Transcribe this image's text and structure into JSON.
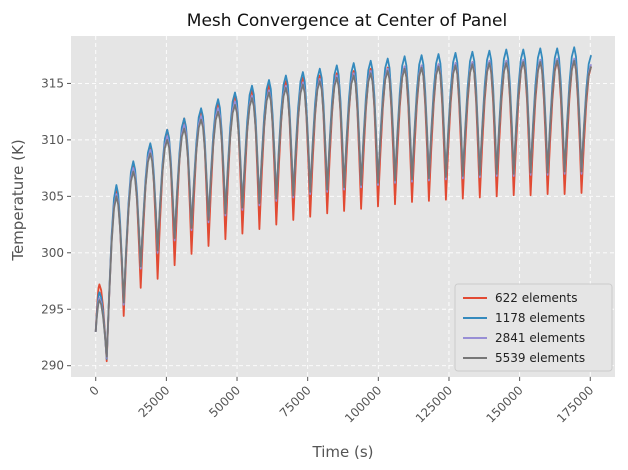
{
  "chart_data": {
    "type": "line",
    "title": "Mesh Convergence at Center of Panel",
    "xlabel": "Time (s)",
    "ylabel": "Temperature (K)",
    "xlim": [
      -8750,
      183750
    ],
    "ylim": [
      289,
      319.2
    ],
    "xticks": [
      0,
      25000,
      50000,
      75000,
      100000,
      125000,
      150000,
      175000
    ],
    "yticks": [
      290,
      295,
      300,
      305,
      310,
      315
    ],
    "grid": true,
    "legend_position": "lower-right",
    "period_s": 6000,
    "rise_s": 3400,
    "start": {
      "x": 0,
      "y": 293
    },
    "end_x": 175500,
    "series": [
      {
        "name": "622 elements",
        "color": "#e24a33",
        "peaks": [
          297.2,
          305.6,
          307.8,
          309.6,
          310.9,
          311.9,
          312.7,
          313.4,
          314.0,
          314.5,
          314.9,
          315.2,
          315.5,
          315.7,
          315.9,
          316.1,
          316.3,
          316.4,
          316.5,
          316.6,
          316.7,
          316.8,
          316.9,
          316.9,
          317.0,
          317.0,
          317.0,
          317.0,
          317.1,
          316.5
        ],
        "mins": [
          290.4,
          294.4,
          296.9,
          297.7,
          298.9,
          299.9,
          300.6,
          301.2,
          301.7,
          302.1,
          302.5,
          302.9,
          303.2,
          303.5,
          303.7,
          303.9,
          304.1,
          304.3,
          304.5,
          304.6,
          304.7,
          304.8,
          304.9,
          305.0,
          305.1,
          305.1,
          305.2,
          305.2,
          305.3
        ]
      },
      {
        "name": "1178 elements",
        "color": "#348abd",
        "peaks": [
          296.5,
          306.0,
          308.1,
          309.7,
          310.9,
          311.9,
          312.8,
          313.6,
          314.2,
          314.8,
          315.3,
          315.7,
          316.0,
          316.3,
          316.6,
          316.8,
          317.0,
          317.2,
          317.4,
          317.5,
          317.6,
          317.7,
          317.8,
          317.9,
          318.0,
          318.0,
          318.1,
          318.1,
          318.2,
          317.5
        ],
        "mins": [
          290.6,
          295.4,
          298.7,
          300.2,
          301.3,
          302.2,
          302.9,
          303.5,
          304.0,
          304.4,
          304.8,
          305.1,
          305.4,
          305.6,
          305.8,
          306.0,
          306.2,
          306.4,
          306.5,
          306.6,
          306.7,
          306.8,
          306.9,
          307.0,
          307.0,
          307.1,
          307.1,
          307.2,
          307.2
        ]
      },
      {
        "name": "2841 elements",
        "color": "#988ed5",
        "peaks": [
          296.0,
          305.2,
          307.5,
          309.1,
          310.3,
          311.3,
          312.1,
          312.8,
          313.4,
          313.9,
          314.4,
          314.8,
          315.1,
          315.4,
          315.7,
          315.9,
          316.1,
          316.3,
          316.5,
          316.6,
          316.7,
          316.8,
          316.9,
          317.0,
          317.0,
          317.1,
          317.1,
          317.2,
          317.2,
          316.7
        ],
        "mins": [
          290.7,
          295.4,
          298.6,
          300.0,
          301.1,
          302.0,
          302.7,
          303.3,
          303.8,
          304.2,
          304.6,
          304.9,
          305.2,
          305.4,
          305.6,
          305.8,
          306.0,
          306.2,
          306.3,
          306.4,
          306.5,
          306.6,
          306.7,
          306.8,
          306.8,
          306.9,
          306.9,
          307.0,
          307.0
        ]
      },
      {
        "name": "5539 elements",
        "color": "#777777",
        "peaks": [
          295.8,
          305.0,
          307.2,
          308.8,
          310.0,
          311.0,
          311.8,
          312.5,
          313.1,
          313.7,
          314.2,
          314.6,
          314.9,
          315.2,
          315.5,
          315.7,
          315.9,
          316.1,
          316.3,
          316.4,
          316.5,
          316.6,
          316.7,
          316.8,
          316.8,
          316.9,
          316.9,
          317.0,
          317.0,
          316.5
        ],
        "mins": [
          290.8,
          295.6,
          298.8,
          300.2,
          301.3,
          302.2,
          302.9,
          303.5,
          304.0,
          304.4,
          304.8,
          305.1,
          305.4,
          305.6,
          305.8,
          306.0,
          306.2,
          306.4,
          306.5,
          306.6,
          306.7,
          306.8,
          306.9,
          307.0,
          307.0,
          307.1,
          307.1,
          307.2,
          307.2
        ]
      }
    ]
  },
  "style": {
    "plot_bg": "#e5e5e5",
    "grid_color": "#ffffff",
    "legend_bg": "#e5e5e5",
    "legend_border": "#cccccc"
  }
}
